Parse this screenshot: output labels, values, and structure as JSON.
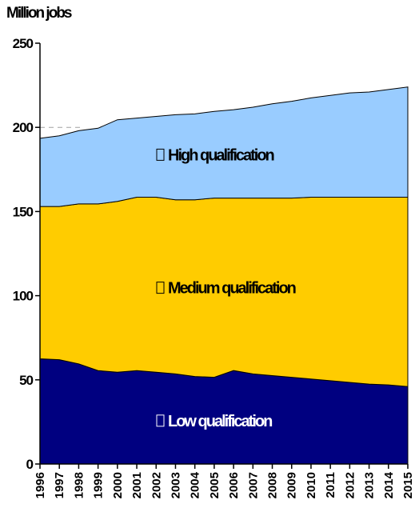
{
  "chart_data": {
    "type": "area",
    "stacked": true,
    "unit_label": "Million jobs",
    "x": [
      "1996",
      "1997",
      "1998",
      "1999",
      "2000",
      "2001",
      "2002",
      "2003",
      "2004",
      "2005",
      "2006",
      "2007",
      "2008",
      "2009",
      "2010",
      "2011",
      "2012",
      "2013",
      "2014",
      "2015"
    ],
    "series": [
      {
        "name": "Low qualification",
        "color": "#000080",
        "label_color": "#ffffff",
        "values": [
          62.5,
          62,
          59.5,
          55.5,
          54.5,
          55.5,
          54.5,
          53.5,
          52,
          51.5,
          55.5,
          53.5,
          52.5,
          51.5,
          50.5,
          49.5,
          48.5,
          47.5,
          47,
          46
        ]
      },
      {
        "name": "Medium qualification",
        "color": "#ffcc00",
        "label_color": "#000000",
        "values": [
          90.5,
          91,
          95,
          99,
          101.5,
          103,
          104,
          103.5,
          105,
          106.5,
          102.5,
          104.5,
          105.5,
          106.5,
          108,
          109,
          110,
          111,
          111.5,
          112.5
        ]
      },
      {
        "name": "High qualification",
        "color": "#99ccff",
        "label_color": "#000000",
        "values": [
          40.5,
          42,
          43.5,
          45,
          48.5,
          47,
          48,
          50.5,
          51,
          51.5,
          52.5,
          54,
          56,
          57.5,
          59,
          60.5,
          62,
          62.5,
          64,
          65.5
        ]
      }
    ],
    "ylim": [
      0,
      250
    ],
    "yticks": [
      0,
      50,
      100,
      150,
      200,
      250
    ],
    "reference_line": 200,
    "grid": false,
    "legend": "inline labels"
  }
}
